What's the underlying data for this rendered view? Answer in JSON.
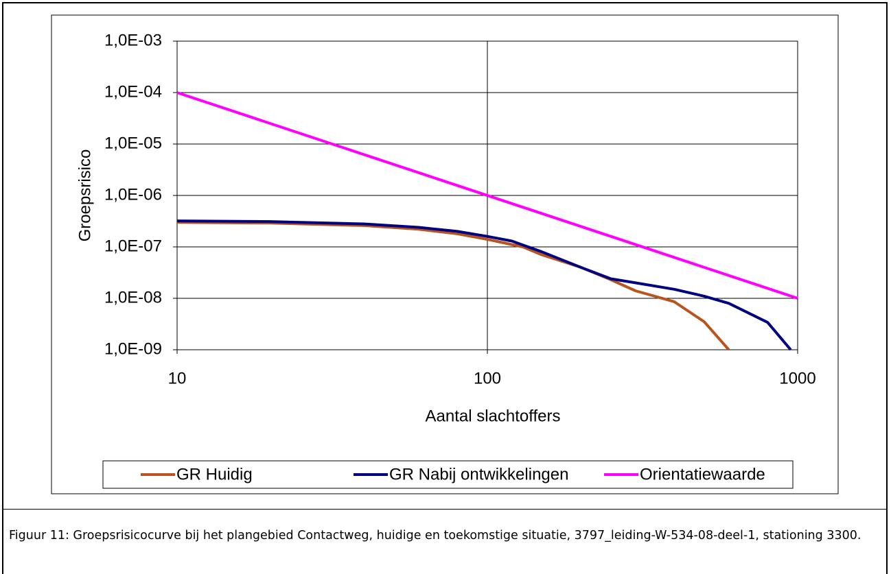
{
  "chart_data": {
    "type": "line",
    "xlabel": "Aantal slachtoffers",
    "ylabel": "Groepsrisico",
    "xscale": "log",
    "yscale": "log",
    "xlim": [
      10,
      1000
    ],
    "xticks": [
      10,
      100,
      1000
    ],
    "ylim": [
      1e-09,
      0.001
    ],
    "yticks": [
      {
        "value": 1e-09,
        "label": "1,0E-09"
      },
      {
        "value": 1e-08,
        "label": "1,0E-08"
      },
      {
        "value": 1e-07,
        "label": "1,0E-07"
      },
      {
        "value": 1e-06,
        "label": "1,0E-06"
      },
      {
        "value": 1e-05,
        "label": "1,0E-05"
      },
      {
        "value": 0.0001,
        "label": "1,0E-04"
      },
      {
        "value": 0.001,
        "label": "1,0E-03"
      }
    ],
    "grid": true,
    "legend": "bottom",
    "series": [
      {
        "name": "GR Huidig",
        "color": "#b8541e",
        "x": [
          10,
          20,
          40,
          60,
          80,
          100,
          130,
          150,
          200,
          250,
          300,
          400,
          500,
          600
        ],
        "values": [
          3e-07,
          2.9e-07,
          2.6e-07,
          2.2e-07,
          1.8e-07,
          1.4e-07,
          1e-07,
          7e-08,
          4e-08,
          2.3e-08,
          1.4e-08,
          8.6e-09,
          3.5e-09,
          1e-09
        ]
      },
      {
        "name": "GR Nabij ontwikkelingen",
        "color": "#000080",
        "x": [
          10,
          20,
          40,
          60,
          80,
          100,
          120,
          150,
          200,
          250,
          300,
          400,
          500,
          600,
          800,
          950
        ],
        "values": [
          3.2e-07,
          3.1e-07,
          2.8e-07,
          2.4e-07,
          2e-07,
          1.6e-07,
          1.3e-07,
          8e-08,
          4e-08,
          2.4e-08,
          2e-08,
          1.5e-08,
          1.1e-08,
          8e-09,
          3.4e-09,
          1e-09
        ]
      },
      {
        "name": "Orientatiewaarde",
        "color": "#ff00ff",
        "x": [
          10,
          1000
        ],
        "values": [
          0.0001,
          1e-08
        ]
      }
    ]
  },
  "caption": "Figuur 11: Groepsrisicocurve bij het plangebied Contactweg, huidige en toekomstige situatie, 3797_leiding-W-534-08-deel-1, stationing 3300."
}
